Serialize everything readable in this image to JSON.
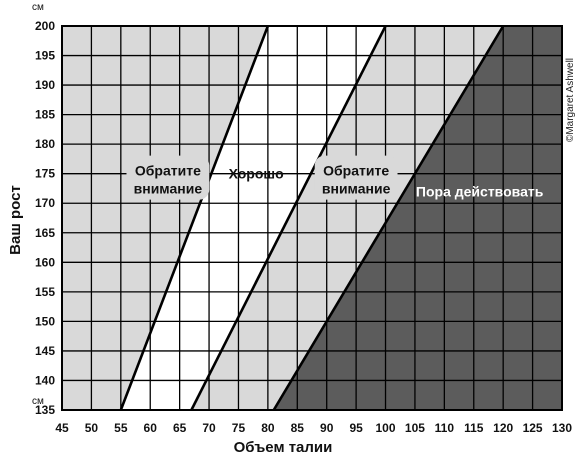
{
  "chart_data": {
    "type": "area",
    "xlabel": "Объем талии",
    "ylabel": "Ваш рост",
    "x_unit": "см",
    "y_unit": "см",
    "xlim": [
      45,
      130
    ],
    "ylim": [
      135,
      200
    ],
    "x_ticks": [
      45,
      50,
      55,
      60,
      65,
      70,
      75,
      80,
      85,
      90,
      95,
      100,
      105,
      110,
      115,
      120,
      125,
      130
    ],
    "y_ticks": [
      135,
      140,
      145,
      150,
      155,
      160,
      165,
      170,
      175,
      180,
      185,
      190,
      195,
      200
    ],
    "grid": true,
    "boundaries": [
      {
        "name": "line-1",
        "points": [
          [
            55,
            135
          ],
          [
            80,
            200
          ]
        ]
      },
      {
        "name": "line-2",
        "points": [
          [
            67,
            135
          ],
          [
            100,
            200
          ]
        ]
      },
      {
        "name": "line-3",
        "points": [
          [
            81,
            135
          ],
          [
            120,
            200
          ]
        ]
      }
    ],
    "zones": [
      {
        "label": "Обратите внимание",
        "lines": [
          "Обратите",
          "внимание"
        ],
        "anchor": [
          63,
          174
        ],
        "shade": "light"
      },
      {
        "label": "Хорошо",
        "lines": [
          "Хорошо"
        ],
        "anchor": [
          78,
          175
        ],
        "shade": "white"
      },
      {
        "label": "Обратите внимание",
        "lines": [
          "Обратите",
          "внимание"
        ],
        "anchor": [
          95,
          174
        ],
        "shade": "light"
      },
      {
        "label": "Пора действовать",
        "lines": [
          "Пора действовать"
        ],
        "anchor": [
          116,
          172
        ],
        "shade": "dark"
      }
    ],
    "copyright": "©Margaret Ashwell"
  },
  "colors": {
    "light_zone": "#d9d9d9",
    "dark_zone": "#5c5c5c",
    "grid": "#000000",
    "line": "#000000"
  }
}
